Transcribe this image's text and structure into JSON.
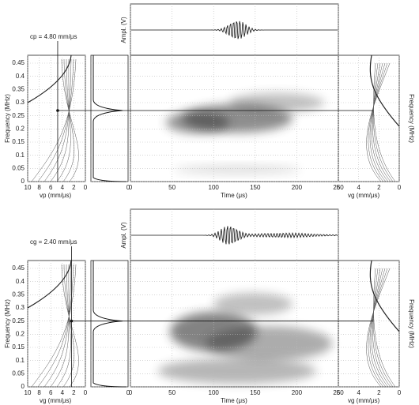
{
  "chart_data": [
    {
      "type": "spectrogram",
      "annotation": "cp = 4.80 mm/μs",
      "cursor_velocity": 4.8,
      "cursor_frequency": 0.27,
      "waveform": {
        "ylabel": "Ampl. (V)"
      },
      "phase_velocity": {
        "xlabel": "vp (mm/μs)",
        "ylabel": "Frequency (MHz)",
        "xlim": [
          10,
          0
        ],
        "xticks": [
          10,
          8,
          6,
          4,
          2,
          0
        ],
        "ylim": [
          0,
          0.48
        ],
        "yticks": [
          0,
          0.05,
          0.1,
          0.15,
          0.2,
          0.25,
          0.3,
          0.35,
          0.4,
          0.45
        ]
      },
      "spectrum": {
        "xticks": [
          0
        ]
      },
      "time_frequency": {
        "xlabel": "Time (μs)",
        "xlim": [
          0,
          250
        ],
        "xticks": [
          0,
          50,
          100,
          150,
          200,
          250
        ]
      },
      "group_velocity": {
        "xlabel": "vg (mm/μs)",
        "ylabel": "Frequency (MHz)",
        "xlim": [
          6,
          0
        ],
        "xticks": [
          6,
          4,
          2,
          0
        ]
      }
    },
    {
      "type": "spectrogram",
      "annotation": "cg = 2.40 mm/μs",
      "cursor_velocity": 2.4,
      "cursor_frequency": 0.25,
      "waveform": {
        "ylabel": "Ampl. (V)"
      },
      "phase_velocity": {
        "xlabel": "vg (mm/μs)",
        "ylabel": "Frequency (MHz)",
        "xlim": [
          10,
          0
        ],
        "xticks": [
          10,
          8,
          6,
          4,
          2,
          0
        ],
        "ylim": [
          0,
          0.48
        ],
        "yticks": [
          0,
          0.05,
          0.1,
          0.15,
          0.2,
          0.25,
          0.3,
          0.35,
          0.4,
          0.45
        ]
      },
      "spectrum": {
        "xticks": [
          0
        ]
      },
      "time_frequency": {
        "xlabel": "Time (μs)",
        "xlim": [
          0,
          250
        ],
        "xticks": [
          0,
          50,
          100,
          150,
          200,
          250
        ]
      },
      "group_velocity": {
        "xlabel": "vg (mm/μs)",
        "ylabel": "Frequency (MHz)",
        "xlim": [
          6,
          0
        ],
        "xticks": [
          6,
          4,
          2,
          0
        ]
      }
    }
  ]
}
